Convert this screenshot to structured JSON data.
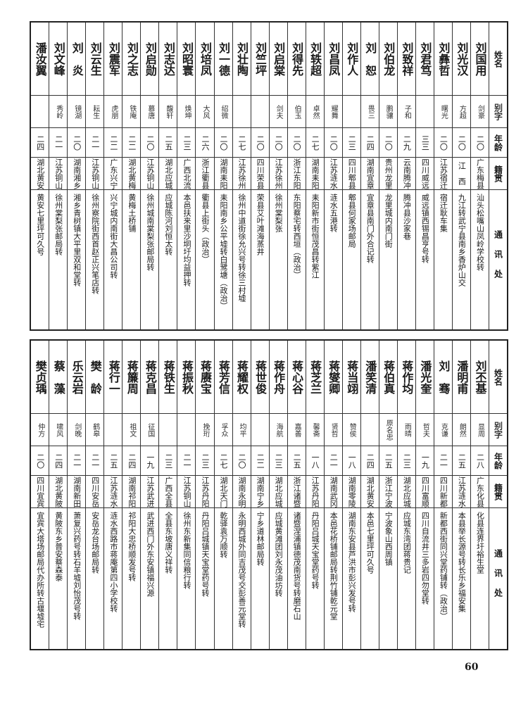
{
  "headers": {
    "name": "姓名",
    "alias": "别字",
    "age": "年龄",
    "origin": "籍贯",
    "address": "通讯处"
  },
  "tables": [
    {
      "rows": [
        {
          "name": "刘国用",
          "alias": "剑豪",
          "age": "二〇",
          "origin": "广东梅县",
          "address": "汕头松嘴山凤岭学校转"
        },
        {
          "name": "刘光汉",
          "alias": "方超",
          "age": "二〇",
          "origin": "江　西",
          "address": "九江转武宁县南乡香炉山交"
        },
        {
          "name": "刘彝哲",
          "alias": "曙光",
          "age": "二〇",
          "origin": "江苏宿迁",
          "address": "宿迁耿车集"
        },
        {
          "name": "刘君笃",
          "alias": "",
          "age": "三三",
          "origin": "四川威远",
          "address": "威远镇西锡昌亨号转"
        },
        {
          "name": "刘致祥",
          "alias": "子和",
          "age": "二九",
          "origin": "云南腾冲",
          "address": "腾冲县沙家巷"
        },
        {
          "name": "刘伯龙",
          "alias": "鹏骧",
          "age": "二〇",
          "origin": "贵州龙里",
          "address": "龙里城内南门街"
        },
        {
          "name": "刘　恕",
          "alias": "畏三",
          "age": "二四",
          "origin": "湖南宜章",
          "address": "宜章县南门外合记转"
        },
        {
          "name": "刘作人",
          "alias": "",
          "age": "二三",
          "origin": "四川郫县",
          "address": "郫县何家场邮局"
        },
        {
          "name": "刘昌凤",
          "alias": "耀舞",
          "age": "二〇",
          "origin": "江苏涟水",
          "address": "涟水五港转"
        },
        {
          "name": "刘轶超",
          "alias": "卓然",
          "age": "二七",
          "origin": "湖南耒阳",
          "address": "耒阳新市街恒茂昌转紫江"
        },
        {
          "name": "刘得先",
          "alias": "伯玉",
          "age": "二〇",
          "origin": "浙江东阳",
          "address": "东阳蔡宅转西垣（政治）"
        },
        {
          "name": "刘启棠",
          "alias": "剑夫",
          "age": "二〇",
          "origin": "江苏徐州",
          "address": "徐州棠梨张"
        },
        {
          "name": "刘竺坪",
          "alias": "",
          "age": "二〇",
          "origin": "四川荣县",
          "address": "荣县艾叶滩海蒸井"
        },
        {
          "name": "刘壮陶",
          "alias": "",
          "age": "二七",
          "origin": "江苏徐州",
          "address": "徐州中道街徐允兴号转徐三村墟"
        },
        {
          "name": "刘一德",
          "alias": "绍微",
          "age": "二〇",
          "origin": "湖南耒阳",
          "address": "耒阳南乡公平墟转白鹭塘（政治）"
        },
        {
          "name": "刘培凤",
          "alias": "大风",
          "age": "二六",
          "origin": "浙江衢县",
          "address": "衢县上街头（政治）"
        },
        {
          "name": "刘昭寰",
          "alias": "焕坤",
          "age": "二三",
          "origin": "广西北流",
          "address": "本邑扶来里沙垌圩均益押转"
        },
        {
          "name": "刘志达",
          "alias": "馥轩",
          "age": "二五",
          "origin": "湖北应城",
          "address": "应城陈河刘恒太转"
        },
        {
          "name": "刘启勋",
          "alias": "慕唐",
          "age": "二〇",
          "origin": "江苏铜山",
          "address": "徐州城南棠梨张邮局转"
        },
        {
          "name": "刘之志",
          "alias": "铁庵",
          "age": "二二",
          "origin": "湖北黄梅",
          "address": "黄梅土桥铺"
        },
        {
          "name": "刘震军",
          "alias": "虎朋",
          "age": "二二",
          "origin": "广东兴宁",
          "address": "兴宁城内南街大昌公司转"
        },
        {
          "name": "刘云生",
          "alias": "耘生",
          "age": "二一",
          "origin": "江苏铜山",
          "address": "徐州察院街西首赵正兴笔店转"
        },
        {
          "name": "刘　炎",
          "alias": "镜湖",
          "age": "二〇",
          "origin": "湖南湘乡",
          "address": "湘乡青树镇大平里双和堂转"
        },
        {
          "name": "刘文峰",
          "alias": "秀岭",
          "age": "二一",
          "origin": "江苏铜山",
          "address": "徐州棠梨张邮局转"
        },
        {
          "name": "潘汝翼",
          "alias": "",
          "age": "二四",
          "origin": "湖北黄安",
          "address": "黄安七里坪可久号"
        }
      ]
    },
    {
      "rows": [
        {
          "name": "刘丕基",
          "alias": "显周",
          "age": "二八",
          "origin": "广东化县",
          "address": "化县连界圩裕生堂"
        },
        {
          "name": "潘明甫",
          "alias": "朗然",
          "age": "二五",
          "origin": "江苏涟水",
          "address": "本县举长源号转长乐乡福安集"
        },
        {
          "name": "刘　骞",
          "alias": "克谦",
          "age": "二一",
          "origin": "四川新都",
          "address": "新都西街同兴堂药铺转（政治）"
        },
        {
          "name": "潘光奎",
          "alias": "哲夫",
          "age": "一九",
          "origin": "四川富顺",
          "address": "四川自流井三多岩四勿堂转"
        },
        {
          "name": "蒋作均",
          "alias": "雨晴",
          "age": "二三",
          "origin": "湖北应城",
          "address": "应城东湾团蒋贵记"
        },
        {
          "name": "蒋伯真",
          "alias": "原名忠",
          "age": "二五",
          "origin": "浙江宁波",
          "address": "宁波象山西周镇"
        },
        {
          "name": "潘笑清",
          "alias": "",
          "age": "二四",
          "origin": "湖北黄安",
          "address": "本邑七里坪可久号"
        },
        {
          "name": "蒋当翊",
          "alias": "赞侯",
          "age": "一八",
          "origin": "湖南零陵",
          "address": "湖南东安县芦洪市彭兴发号转"
        },
        {
          "name": "蒋燮卿",
          "alias": "贤哲",
          "age": "二一",
          "origin": "湖南武冈",
          "address": "本邑花桥铺邮局转荆竹铺乾元堂"
        },
        {
          "name": "蒋芝兰",
          "alias": "馨斋",
          "age": "一八",
          "origin": "江苏丹阳",
          "address": "丹阳吕城天宝堂药号转"
        },
        {
          "name": "蒋心谷",
          "alias": "嘉善",
          "age": "二五",
          "origin": "浙江诸暨",
          "address": "诸暨涅浦镇德茂南货号转磨石山"
        },
        {
          "name": "蒋作舟",
          "alias": "海航",
          "age": "二三",
          "origin": "湖北应城",
          "address": "应城黄滩团刘永茂油坊转"
        },
        {
          "name": "蒋世俊",
          "alias": "",
          "age": "二二",
          "origin": "湖南宁乡",
          "address": "宁乡道林邮局转"
        },
        {
          "name": "蒋耀权",
          "alias": "均平",
          "age": "二〇",
          "origin": "湖南永明",
          "address": "永明西城外同吉茂号交彭善元堂转"
        },
        {
          "name": "蒋芳信",
          "alias": "孚众",
          "age": "二七",
          "origin": "湖北天门",
          "address": "乾驿袁万顺转"
        },
        {
          "name": "蒋赓宝",
          "alias": "挽珩",
          "age": "二三",
          "origin": "江苏丹阳",
          "address": "丹阳吕城镇天宝堂药号转"
        },
        {
          "name": "蒋振秋",
          "alias": "",
          "age": "二一",
          "origin": "江苏铜山",
          "address": "徐州东新集同信粮行转"
        },
        {
          "name": "蒋铁生",
          "alias": "",
          "age": "二三",
          "origin": "广西全县",
          "address": "全县东坡唐义祥转"
        },
        {
          "name": "蒋克昌",
          "alias": "征国",
          "age": "一九",
          "origin": "江苏武进",
          "address": "武进西门外东安镇福兴源"
        },
        {
          "name": "蒋簾周",
          "alias": "祖文",
          "age": "二四",
          "origin": "湖南祁阳",
          "address": "祁阳大忠桥顺发号转"
        },
        {
          "name": "蒋行一",
          "alias": "",
          "age": "二五",
          "origin": "江苏涟水",
          "address": "涟水西路市蒋庵第四小学校转"
        },
        {
          "name": "樊　龄",
          "alias": "鹤皋",
          "age": "二一",
          "origin": "四川安岳",
          "address": "安岳龙台场邮局转"
        },
        {
          "name": "乐云岩",
          "alias": "剑晚",
          "age": "二一",
          "origin": "湖南新田",
          "address": "萧复兴药号转石羊墟刘怡茂号转"
        },
        {
          "name": "蔡　藻",
          "alias": "啸风",
          "age": "二四",
          "origin": "湖北黄陂",
          "address": "黄陂东乡普安蔡森泰"
        },
        {
          "name": "樊贞瑀",
          "alias": "仲方",
          "age": "二〇",
          "origin": "四川宜宾",
          "address": "宜宾大塔场邮局代办所转古堰墟宅"
        }
      ]
    }
  ],
  "page_number": "60"
}
